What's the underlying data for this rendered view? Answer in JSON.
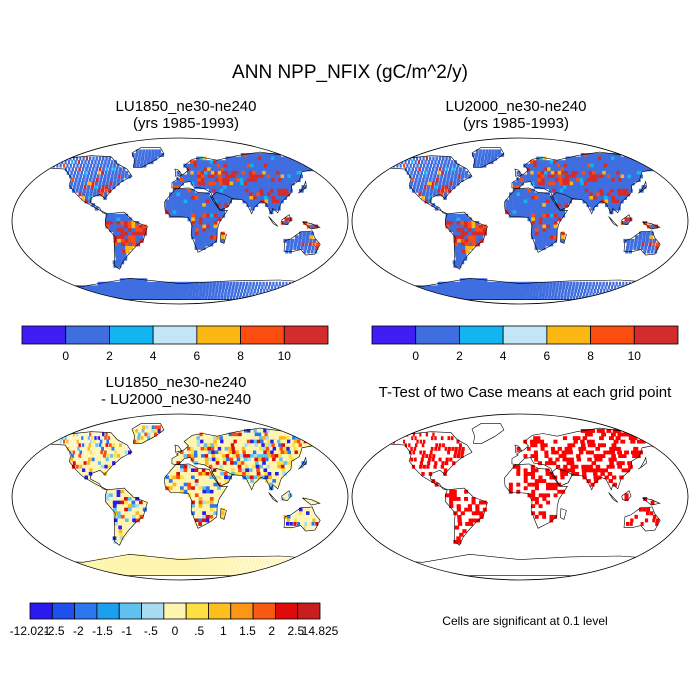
{
  "title": "ANN NPP_NFIX (gC/m^2/y)",
  "panels": {
    "lu1850": {
      "title_line1": "LU1850_ne30-ne240",
      "title_line2": "(yrs 1985-1993)"
    },
    "lu2000": {
      "title_line1": "LU2000_ne30-ne240",
      "title_line2": "(yrs 1985-1993)"
    },
    "diff": {
      "title_line1": "LU1850_ne30-ne240",
      "title_line2": "- LU2000_ne30-ne240"
    },
    "ttest": {
      "title": "T-Test of two Case means at each grid point",
      "note": "Cells are significant at 0.1 level"
    }
  },
  "colorbar_top": {
    "colors": [
      "#3e1ef5",
      "#3f6ee0",
      "#11b5f2",
      "#c2e6f5",
      "#fbb814",
      "#fb4d0f",
      "#d42c2c"
    ],
    "labels": [
      "0",
      "2",
      "4",
      "6",
      "8",
      "10"
    ]
  },
  "colorbar_diff": {
    "colors": [
      "#2a1af0",
      "#1f4fee",
      "#2a77ef",
      "#1ba0f0",
      "#5fc1f0",
      "#a9dcf3",
      "#fdf5b0",
      "#fde043",
      "#fdbf1f",
      "#fb9617",
      "#f85a12",
      "#e00c0c",
      "#c81e1e"
    ],
    "labels": [
      "-12.021",
      "-2.5",
      "-2",
      "-1.5",
      "-1",
      "-.5",
      "0",
      ".5",
      "1",
      "1.5",
      "2",
      "2.5",
      "14.825"
    ]
  },
  "map_colors": {
    "ocean": "#ffffff",
    "land_base": "#3f6ee0",
    "hot": [
      "#fb4d0f",
      "#d42c2c",
      "#fbb814",
      "#11b5f2"
    ],
    "diff_base": "#fdf5b0",
    "diff_mix": [
      "#a9dcf3",
      "#5fc1f0",
      "#2a77ef",
      "#fde043",
      "#fbb814",
      "#fb4d0f",
      "#e00c0c",
      "#2a1af0"
    ],
    "signif": "#ff0000"
  }
}
